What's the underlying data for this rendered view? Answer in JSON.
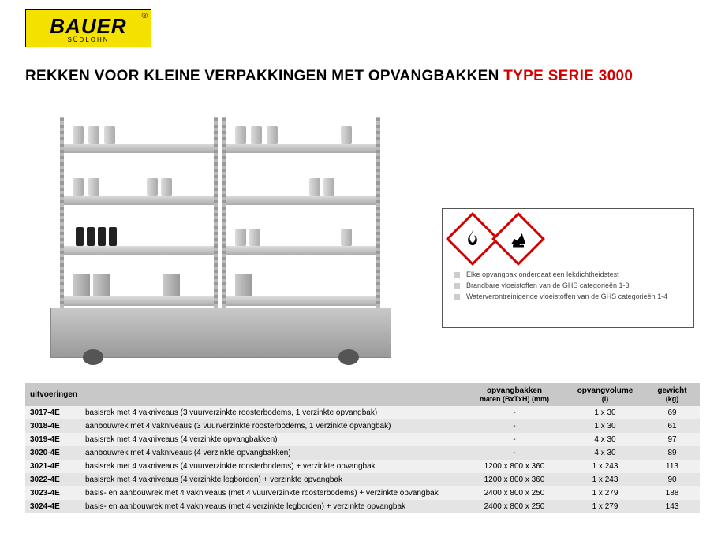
{
  "logo": {
    "brand": "BAUER",
    "sub": "SÜDLOHN",
    "reg": "®"
  },
  "title": {
    "black": "REKKEN VOOR KLEINE VERPAKKINGEN MET OPVANGBAKKEN ",
    "red": "TYPE SERIE 3000"
  },
  "info": {
    "bullets": [
      "Elke opvangbak ondergaat een lekdichtheidstest",
      "Brandbare vloeistoffen van de GHS categorieën 1-3",
      "Waterverontreinigende vloeistoffen van de GHS categorieën 1-4"
    ]
  },
  "table": {
    "headers": {
      "uitvoeringen": "uitvoeringen",
      "opvangbakken": "opvangbakken",
      "opvangbakken_sub": "maten (BxTxH) (mm)",
      "opvangvolume": "opvangvolume",
      "opvangvolume_sub": "(l)",
      "gewicht": "gewicht",
      "gewicht_sub": "(kg)"
    },
    "rows": [
      {
        "code": "3017-4E",
        "desc": "basisrek met 4 vakniveaus (3 vuurverzinkte roosterbodems, 1 verzinkte opvangbak)",
        "maten": "-",
        "vol": "1 x  30",
        "kg": "69"
      },
      {
        "code": "3018-4E",
        "desc": "aanbouwrek met 4 vakniveaus (3 vuurverzinkte roosterbodems, 1 verzinkte opvangbak)",
        "maten": "-",
        "vol": "1 x  30",
        "kg": "61"
      },
      {
        "code": "3019-4E",
        "desc": "basisrek met 4 vakniveaus (4 verzinkte opvangbakken)",
        "maten": "-",
        "vol": "4 x  30",
        "kg": "97"
      },
      {
        "code": "3020-4E",
        "desc": "aanbouwrek met 4 vakniveaus (4 verzinkte opvangbakken)",
        "maten": "-",
        "vol": "4 x  30",
        "kg": "89"
      },
      {
        "code": "3021-4E",
        "desc": "basisrek met 4 vakniveaus (4 vuurverzinkte roosterbodems) + verzinkte opvangbak",
        "maten": "1200 x 800 x 360",
        "vol": "1 x 243",
        "kg": "113"
      },
      {
        "code": "3022-4E",
        "desc": "basisrek met 4 vakniveaus (4 verzinkte legborden) + verzinkte opvangbak",
        "maten": "1200 x 800 x 360",
        "vol": "1 x 243",
        "kg": "90"
      },
      {
        "code": "3023-4E",
        "desc": "basis- en aanbouwrek met 4 vakniveaus (met 4 vuurverzinkte roosterbodems) + verzinkte opvangbak",
        "maten": "2400 x 800 x 250",
        "vol": "1 x 279",
        "kg": "188"
      },
      {
        "code": "3024-4E",
        "desc": "basis- en aanbouwrek met 4 vakniveaus (met 4 verzinkte legborden) + verzinkte opvangbak",
        "maten": "2400 x 800 x 250",
        "vol": "1 x 279",
        "kg": "143"
      }
    ]
  },
  "colors": {
    "brand_yellow": "#f5e100",
    "accent_red": "#d20000",
    "header_bg": "#c8c8c8",
    "row_odd": "#f0f0f0",
    "row_even": "#e4e4e4"
  }
}
